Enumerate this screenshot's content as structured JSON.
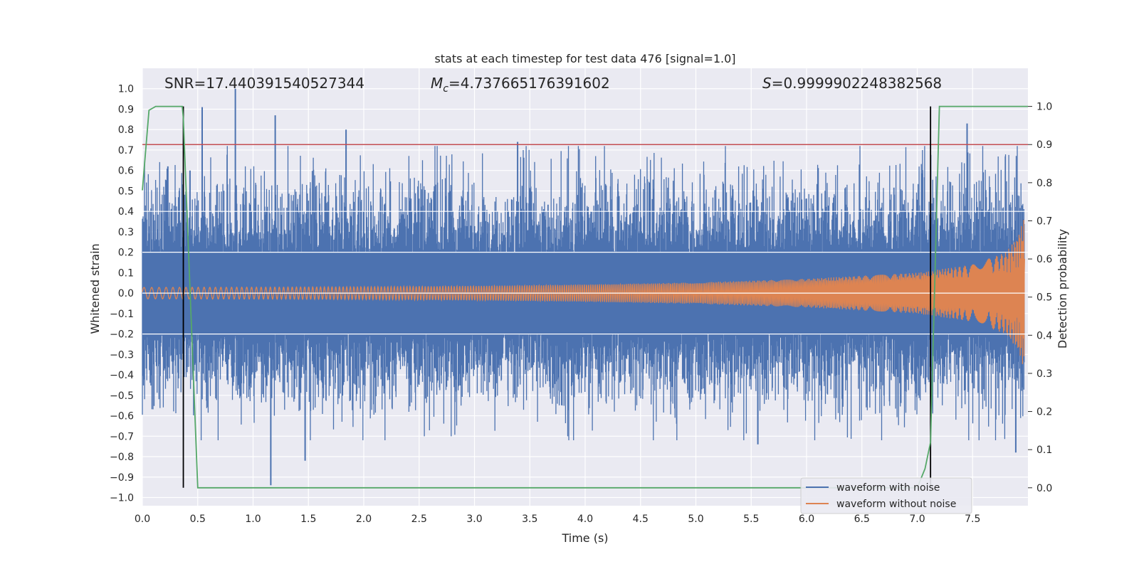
{
  "chart_data": {
    "type": "line",
    "title": "stats at each timestep for test data 476 [signal=1.0]",
    "xlabel": "Time (s)",
    "ylabel": "Whitened strain",
    "y2label": "Detection probability",
    "xlim": [
      0.0,
      8.0
    ],
    "ylim": [
      -1.04,
      1.1
    ],
    "y2lim": [
      -0.047,
      1.1
    ],
    "x_ticks": [
      "0.0",
      "0.5",
      "1.0",
      "1.5",
      "2.0",
      "2.5",
      "3.0",
      "3.5",
      "4.0",
      "4.5",
      "5.0",
      "5.5",
      "6.0",
      "6.5",
      "7.0",
      "7.5"
    ],
    "y_ticks": [
      "1.0",
      "0.9",
      "0.8",
      "0.7",
      "0.6",
      "0.5",
      "0.4",
      "0.3",
      "0.2",
      "0.1",
      "0.0",
      "−0.1",
      "−0.2",
      "−0.3",
      "−0.4",
      "−0.5",
      "−0.6",
      "−0.7",
      "−0.8",
      "−0.9",
      "−1.0"
    ],
    "y2_ticks": [
      "1.0",
      "0.9",
      "0.8",
      "0.7",
      "0.6",
      "0.5",
      "0.4",
      "0.3",
      "0.2",
      "0.1",
      "0.0"
    ],
    "annotations": {
      "snr": "SNR=17.440391540527344",
      "mc_symbol": "M",
      "mc_sub": "c",
      "mc_value": "=4.737665176391602",
      "s_symbol": "S",
      "s_value": "=0.9999902248382568"
    },
    "threshold_y2": 0.9,
    "vertical_lines_x": [
      0.37,
      7.12
    ],
    "grid": true,
    "legend_position": "lower-right",
    "series": [
      {
        "name": "waveform with noise",
        "color": "#4c72b0",
        "description_values": {
          "typical_amplitude": 0.28,
          "noise_sigma": 0.2
        },
        "peaks": [
          {
            "x": 0.23,
            "y": 0.62
          },
          {
            "x": 0.43,
            "y": 0.6
          },
          {
            "x": 0.54,
            "y": 0.91
          },
          {
            "x": 0.84,
            "y": 1.0
          },
          {
            "x": 1.2,
            "y": 0.87
          },
          {
            "x": 1.84,
            "y": 0.8
          },
          {
            "x": 3.39,
            "y": 0.74
          },
          {
            "x": 7.45,
            "y": 0.83
          },
          {
            "x": 1.16,
            "y": -0.94
          },
          {
            "x": 1.47,
            "y": -0.82
          },
          {
            "x": 7.89,
            "y": -0.78
          },
          {
            "x": 5.56,
            "y": -0.74
          }
        ]
      },
      {
        "name": "waveform without noise",
        "color": "#dd8452",
        "envelope": {
          "x": [
            0.0,
            1.0,
            2.0,
            3.0,
            4.0,
            5.0,
            6.0,
            7.0,
            7.5,
            7.8,
            7.9,
            8.0
          ],
          "amplitude": [
            0.028,
            0.029,
            0.031,
            0.035,
            0.042,
            0.052,
            0.07,
            0.1,
            0.14,
            0.2,
            0.27,
            0.42
          ]
        }
      },
      {
        "name": "detection probability",
        "color": "#55a868",
        "axis": "y2",
        "x": [
          0.0,
          0.06,
          0.12,
          0.36,
          0.37,
          0.5,
          1.0,
          2.0,
          3.0,
          4.0,
          5.0,
          6.0,
          7.0,
          7.07,
          7.12,
          7.2,
          7.3,
          8.0
        ],
        "y": [
          0.78,
          0.99,
          1.0,
          1.0,
          0.97,
          0.0,
          0.0,
          0.0,
          0.0,
          0.0,
          0.0,
          0.0,
          0.0,
          0.05,
          0.12,
          1.0,
          1.0,
          1.0
        ]
      },
      {
        "name": "threshold",
        "color": "#c44e52",
        "axis": "y2",
        "x": [
          0.0,
          8.0
        ],
        "y": [
          0.9,
          0.9
        ]
      }
    ]
  }
}
